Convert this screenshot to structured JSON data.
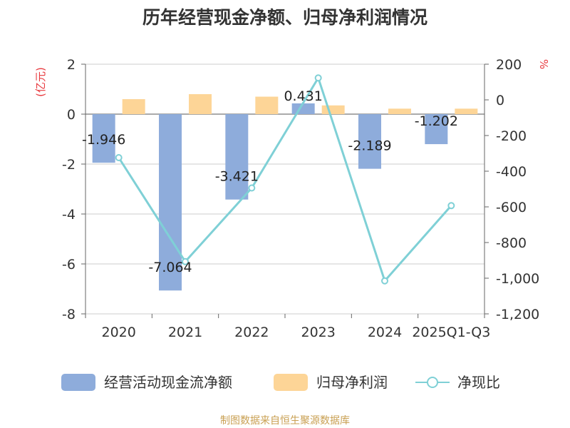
{
  "chart_data": {
    "type": "bar",
    "title": "历年经营现金净额、归母净利润情况",
    "left_unit": "(亿元)",
    "right_unit": "%",
    "categories": [
      "2020",
      "2021",
      "2022",
      "2023",
      "2024",
      "2025Q1-Q3"
    ],
    "series": [
      {
        "name": "经营活动现金流净额",
        "type": "bar",
        "axis": "left",
        "color": "#8eacdb",
        "values": [
          -1.946,
          -7.064,
          -3.421,
          0.431,
          -2.189,
          -1.202
        ],
        "labels": [
          "-1.946",
          "-7.064",
          "-3.421",
          "0.431",
          "-2.189",
          "-1.202"
        ]
      },
      {
        "name": "归母净利润",
        "type": "bar",
        "axis": "left",
        "color": "#fdd597",
        "values": [
          0.6,
          0.8,
          0.7,
          0.35,
          0.22,
          0.22
        ]
      },
      {
        "name": "净现比",
        "type": "line",
        "axis": "right",
        "color": "#7fd0d6",
        "values": [
          -324,
          -907,
          -494,
          123,
          -1015,
          -593
        ]
      }
    ],
    "left_axis": {
      "min": -8,
      "max": 2,
      "ticks": [
        "2",
        "0",
        "-2",
        "-4",
        "-6",
        "-8"
      ],
      "tick_values": [
        2,
        0,
        -2,
        -4,
        -6,
        -8
      ]
    },
    "right_axis": {
      "min": -1200,
      "max": 200,
      "ticks": [
        "200",
        "0",
        "-200",
        "-400",
        "-600",
        "-800",
        "-1,000",
        "-1,200"
      ],
      "tick_values": [
        200,
        0,
        -200,
        -400,
        -600,
        -800,
        -1000,
        -1200
      ]
    },
    "grid": true,
    "legend_position": "bottom"
  },
  "footer": "制图数据来自恒生聚源数据库",
  "colors": {
    "title": "#333333",
    "axis_text": "#333333",
    "unit_red": "#e8383d",
    "grid": "#cccccc",
    "footer": "#c9a053"
  }
}
